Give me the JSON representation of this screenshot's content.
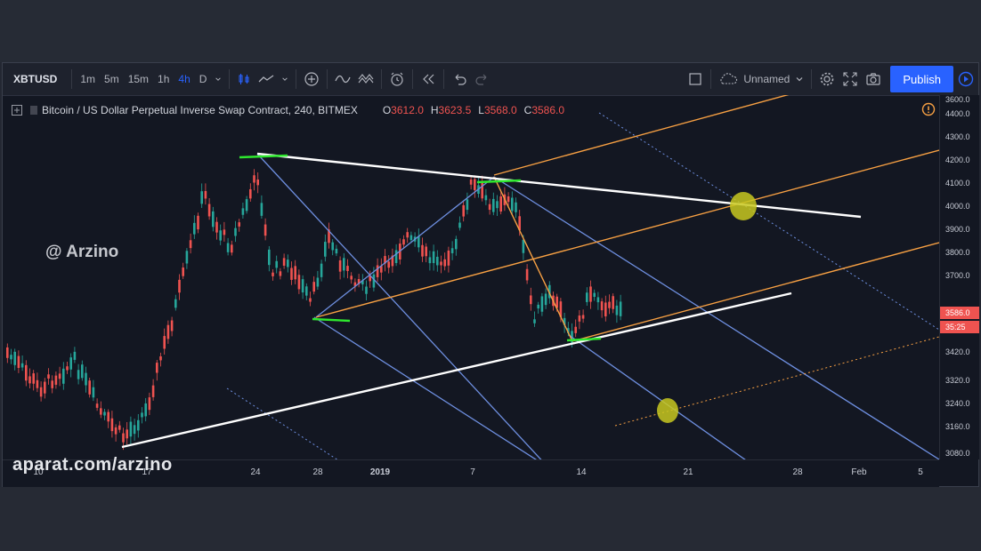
{
  "toolbar": {
    "symbol": "XBTUSD",
    "timeframes": [
      "1m",
      "5m",
      "15m",
      "1h",
      "4h",
      "D"
    ],
    "active_timeframe": "4h",
    "layout_name": "Unnamed",
    "publish_label": "Publish",
    "icons": [
      "chevron-down-icon",
      "candles-icon",
      "line-chart-icon",
      "chevron-down-icon",
      "plus-circle-icon",
      "indicator-icon",
      "templates-icon",
      "alert-clock-icon",
      "replay-icon",
      "undo-icon",
      "redo-icon",
      "square-icon",
      "cloud-icon",
      "gear-icon",
      "fullscreen-icon",
      "camera-icon",
      "play-icon"
    ]
  },
  "legend": {
    "title": "Bitcoin / US Dollar Perpetual Inverse Swap Contract, 240, BITMEX",
    "open_label": "O",
    "open": "3612.0",
    "high_label": "H",
    "high": "3623.5",
    "low_label": "L",
    "low": "3568.0",
    "close_label": "C",
    "close": "3586.0"
  },
  "watermarks": {
    "author": "@ Arzino",
    "site": "aparat.com/arzino"
  },
  "price_axis": {
    "ticks": [
      "4400.0",
      "4300.0",
      "4200.0",
      "4100.0",
      "4000.0",
      "3900.0",
      "3800.0",
      "3700.0",
      "3600.0",
      "3500.0",
      "3420.0",
      "3320.0",
      "3240.0",
      "3160.0",
      "3080.0"
    ],
    "current_price": "3586.0",
    "countdown": "35:25",
    "colors": {
      "label_bg": "#ef5350"
    }
  },
  "time_axis": {
    "ticks": [
      "10",
      "17",
      "24",
      "28",
      "2019",
      "7",
      "14",
      "21",
      "28",
      "Feb",
      "5"
    ]
  },
  "colors": {
    "background": "#131722",
    "up_candle": "#26a69a",
    "down_candle": "#ef5350",
    "trend_white": "#ffffff",
    "channel_orange": "#f7a043",
    "channel_blue": "#6e8fe0",
    "highlight_green": "#2ee82e",
    "marker_yellow": "#c8c820",
    "accent": "#2962ff"
  }
}
